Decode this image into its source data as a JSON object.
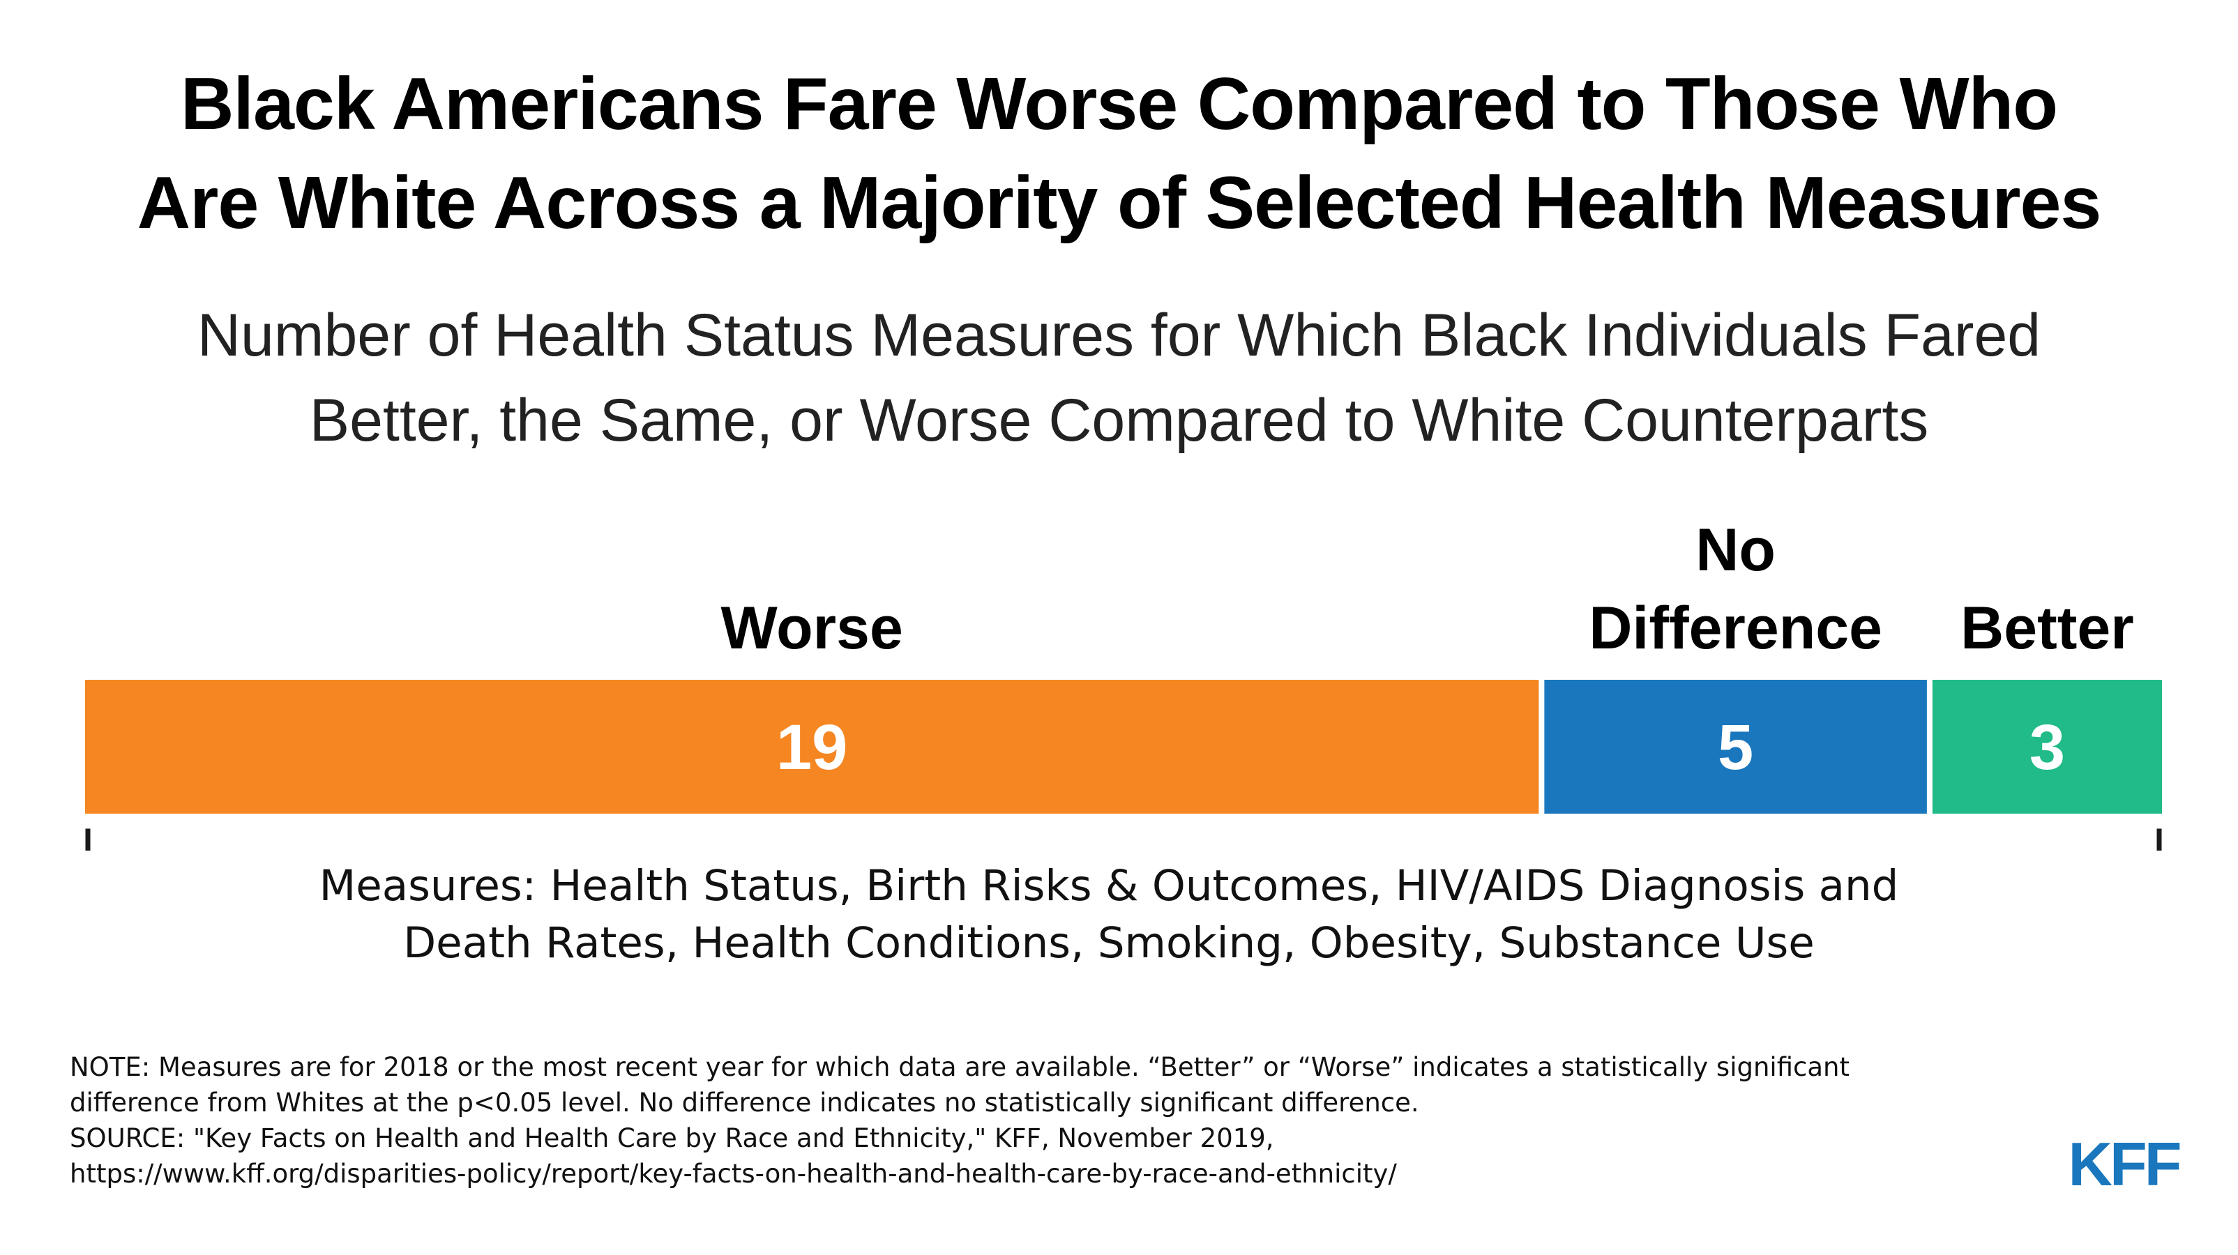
{
  "chart_data": {
    "type": "bar",
    "orientation": "horizontal-stacked",
    "title": "Black Americans Fare Worse Compared to Those Who Are White Across a Majority of Selected Health Measures",
    "subtitle": "Number of Health Status Measures for Which Black Individuals Fared Better, the Same, or Worse Compared to White Counterparts",
    "categories": [
      "Worse",
      "No Difference",
      "Better"
    ],
    "category_label_lines": [
      [
        "Worse"
      ],
      [
        "No",
        "Difference"
      ],
      [
        "Better"
      ]
    ],
    "values": [
      19,
      5,
      3
    ],
    "colors": [
      "#f58622",
      "#1a77bd",
      "#21ba89"
    ],
    "xlabel": "",
    "ylabel": "",
    "grid": false
  },
  "header": {
    "title_lines": [
      "Black Americans Fare Worse Compared to Those Who",
      "Are White Across a Majority of Selected Health Measures"
    ],
    "subtitle_lines": [
      "Number of Health Status Measures for Which Black Individuals Fared",
      "Better, the Same, or Worse Compared to White Counterparts"
    ]
  },
  "caption_lines": [
    "Measures: Health Status, Birth Risks & Outcomes, HIV/AIDS Diagnosis and",
    "Death Rates, Health Conditions, Smoking, Obesity, Substance Use"
  ],
  "notes_lines": [
    "NOTE: Measures are for 2018 or the most recent year for which data are available. “Better” or “Worse” indicates a statistically significant",
    "difference from Whites at the p<0.05 level. No difference indicates no statistically significant difference.",
    "SOURCE: \"Key Facts on Health and Health Care by Race and Ethnicity,\" KFF, November 2019,",
    "https://www.kff.org/disparities-policy/report/key-facts-on-health-and-health-care-by-race-and-ethnicity/"
  ],
  "logo": {
    "text": "KFF",
    "color": "#1a77bd"
  },
  "bracket_color": "#1a1a1a"
}
